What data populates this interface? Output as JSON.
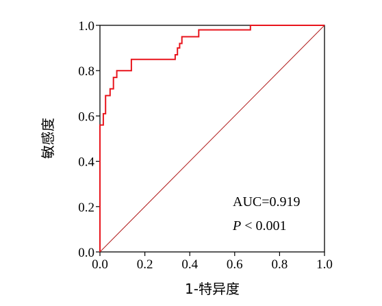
{
  "chart_data": {
    "type": "line",
    "title": "",
    "xlabel": "1-特异度",
    "ylabel": "敏感度",
    "xlim": [
      0,
      1
    ],
    "ylim": [
      0,
      1
    ],
    "grid": false,
    "x_ticks": [
      "0.0",
      "0.2",
      "0.4",
      "0.6",
      "0.8",
      "1.0"
    ],
    "y_ticks": [
      "0.0",
      "0.2",
      "0.4",
      "0.6",
      "0.8",
      "1.0"
    ],
    "series": [
      {
        "name": "",
        "style": "step",
        "color": "#e8141c",
        "points": [
          [
            0.0,
            0.0
          ],
          [
            0.0,
            0.56
          ],
          [
            0.015,
            0.56
          ],
          [
            0.015,
            0.61
          ],
          [
            0.025,
            0.61
          ],
          [
            0.025,
            0.69
          ],
          [
            0.045,
            0.69
          ],
          [
            0.045,
            0.72
          ],
          [
            0.06,
            0.72
          ],
          [
            0.06,
            0.77
          ],
          [
            0.075,
            0.77
          ],
          [
            0.075,
            0.8
          ],
          [
            0.14,
            0.8
          ],
          [
            0.14,
            0.85
          ],
          [
            0.335,
            0.85
          ],
          [
            0.335,
            0.87
          ],
          [
            0.345,
            0.87
          ],
          [
            0.345,
            0.9
          ],
          [
            0.355,
            0.9
          ],
          [
            0.355,
            0.92
          ],
          [
            0.365,
            0.92
          ],
          [
            0.365,
            0.95
          ],
          [
            0.44,
            0.95
          ],
          [
            0.44,
            0.98
          ],
          [
            0.67,
            0.98
          ],
          [
            0.67,
            1.0
          ],
          [
            1.0,
            1.0
          ]
        ]
      },
      {
        "name": "",
        "style": "reference",
        "color": "#b01a1a",
        "points": [
          [
            0.0,
            0.0
          ],
          [
            1.0,
            1.0
          ]
        ]
      }
    ],
    "annotations": {
      "auc": "AUC=0.919",
      "p_symbol": "P",
      "p_rest": " < 0.001"
    }
  }
}
